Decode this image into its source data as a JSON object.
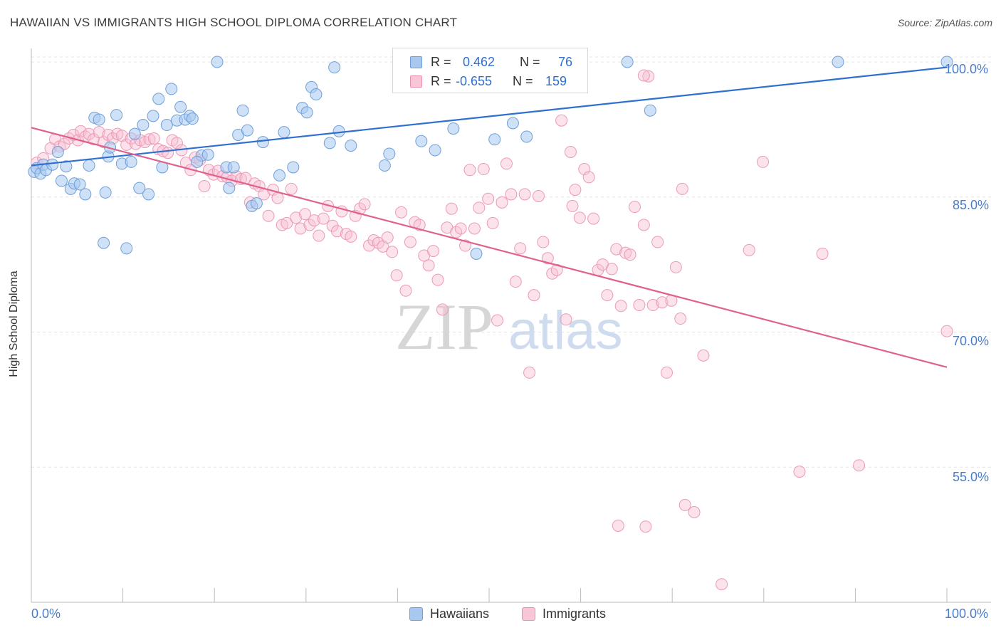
{
  "header": {
    "title": "HAWAIIAN VS IMMIGRANTS HIGH SCHOOL DIPLOMA CORRELATION CHART",
    "source": "Source: ZipAtlas.com"
  },
  "watermark": {
    "zip": "ZIP",
    "atlas": "atlas"
  },
  "legend": {
    "r_label": "R =",
    "n_label": "N =",
    "hawaiians": {
      "r": "0.462",
      "n": "76"
    },
    "immigrants": {
      "r": "-0.655",
      "n": "159"
    }
  },
  "bottom_legend": {
    "hawaiians": "Hawaiians",
    "immigrants": "Immigrants"
  },
  "chart_data": {
    "type": "scatter",
    "ylabel": "High School Diploma",
    "xlim": [
      0,
      100
    ],
    "ylim": [
      40,
      101.5
    ],
    "x_tick_labels": [
      "0.0%",
      "100.0%"
    ],
    "y_tick_labels": [
      "100.0%",
      "85.0%",
      "70.0%",
      "55.0%"
    ],
    "y_ticks": [
      100,
      85,
      70,
      55
    ],
    "grid": true,
    "legend_placement": "top-center",
    "colors": {
      "hawaiians": "#a8c8f0",
      "hawaiians_line": "#2f6fd0",
      "immigrants": "#f5b8cc",
      "immigrants_line": "#e0608e"
    },
    "series": [
      {
        "name": "Hawaiians",
        "trend": {
          "x": [
            0,
            100
          ],
          "y": [
            88.5,
            99.4
          ]
        },
        "points": [
          [
            0.3,
            87.8
          ],
          [
            0.6,
            88.2
          ],
          [
            1.0,
            87.6
          ],
          [
            1.3,
            88.6
          ],
          [
            1.6,
            88.0
          ],
          [
            2.3,
            88.6
          ],
          [
            2.9,
            90.0
          ],
          [
            3.3,
            86.8
          ],
          [
            3.8,
            88.4
          ],
          [
            4.3,
            85.9
          ],
          [
            4.7,
            86.5
          ],
          [
            5.3,
            86.4
          ],
          [
            5.9,
            85.3
          ],
          [
            6.3,
            88.5
          ],
          [
            6.9,
            93.8
          ],
          [
            7.4,
            93.6
          ],
          [
            7.9,
            79.9
          ],
          [
            8.4,
            89.5
          ],
          [
            8.6,
            90.5
          ],
          [
            9.3,
            94.1
          ],
          [
            9.9,
            88.7
          ],
          [
            10.4,
            79.3
          ],
          [
            10.9,
            88.9
          ],
          [
            11.3,
            92.0
          ],
          [
            12.2,
            93.0
          ],
          [
            12.8,
            85.3
          ],
          [
            13.3,
            94.0
          ],
          [
            13.9,
            95.9
          ],
          [
            14.3,
            88.3
          ],
          [
            14.8,
            93.0
          ],
          [
            15.3,
            97.0
          ],
          [
            15.9,
            93.5
          ],
          [
            16.3,
            95.0
          ],
          [
            16.8,
            93.6
          ],
          [
            17.3,
            94.0
          ],
          [
            17.6,
            93.7
          ],
          [
            18.6,
            89.6
          ],
          [
            19.3,
            89.7
          ],
          [
            20.3,
            100.0
          ],
          [
            21.3,
            88.3
          ],
          [
            21.6,
            86.0
          ],
          [
            22.1,
            88.3
          ],
          [
            22.6,
            91.9
          ],
          [
            23.1,
            94.6
          ],
          [
            23.6,
            92.4
          ],
          [
            24.1,
            84.0
          ],
          [
            24.6,
            84.3
          ],
          [
            25.3,
            91.1
          ],
          [
            27.1,
            87.4
          ],
          [
            27.6,
            92.2
          ],
          [
            28.6,
            88.3
          ],
          [
            29.6,
            94.9
          ],
          [
            30.1,
            94.4
          ],
          [
            30.6,
            97.2
          ],
          [
            31.1,
            96.4
          ],
          [
            32.6,
            91.0
          ],
          [
            33.1,
            99.4
          ],
          [
            33.6,
            92.3
          ],
          [
            34.9,
            90.7
          ],
          [
            38.6,
            88.5
          ],
          [
            39.1,
            89.8
          ],
          [
            42.6,
            91.2
          ],
          [
            44.1,
            90.2
          ],
          [
            46.1,
            92.6
          ],
          [
            48.1,
            100.0
          ],
          [
            48.6,
            78.7
          ],
          [
            50.6,
            91.4
          ],
          [
            52.6,
            93.2
          ],
          [
            54.1,
            91.7
          ],
          [
            65.1,
            100.0
          ],
          [
            67.6,
            94.6
          ],
          [
            88.1,
            100.0
          ],
          [
            100.0,
            100.0
          ],
          [
            8.1,
            85.5
          ],
          [
            11.8,
            86.0
          ],
          [
            18.1,
            88.9
          ]
        ]
      },
      {
        "name": "Immigrants",
        "trend": {
          "x": [
            0,
            100
          ],
          "y": [
            92.7,
            66.1
          ]
        },
        "points": [
          [
            0.6,
            88.8
          ],
          [
            1.3,
            89.3
          ],
          [
            2.1,
            90.4
          ],
          [
            2.6,
            91.4
          ],
          [
            3.1,
            90.6
          ],
          [
            3.6,
            90.9
          ],
          [
            4.1,
            91.5
          ],
          [
            4.6,
            91.9
          ],
          [
            5.1,
            91.3
          ],
          [
            5.4,
            92.3
          ],
          [
            5.9,
            91.7
          ],
          [
            6.3,
            92.0
          ],
          [
            6.8,
            91.4
          ],
          [
            7.4,
            92.2
          ],
          [
            7.9,
            91.1
          ],
          [
            8.4,
            91.9
          ],
          [
            8.9,
            91.5
          ],
          [
            9.4,
            92.0
          ],
          [
            9.9,
            91.8
          ],
          [
            10.4,
            90.8
          ],
          [
            10.9,
            91.5
          ],
          [
            11.4,
            90.9
          ],
          [
            11.9,
            91.3
          ],
          [
            12.4,
            91.1
          ],
          [
            12.9,
            91.4
          ],
          [
            13.4,
            91.5
          ],
          [
            13.9,
            90.3
          ],
          [
            14.4,
            90.1
          ],
          [
            14.9,
            89.9
          ],
          [
            15.4,
            91.3
          ],
          [
            15.9,
            91.0
          ],
          [
            16.4,
            90.2
          ],
          [
            16.9,
            88.8
          ],
          [
            17.4,
            88.0
          ],
          [
            17.9,
            89.4
          ],
          [
            18.4,
            89.1
          ],
          [
            18.9,
            86.2
          ],
          [
            19.4,
            88.0
          ],
          [
            19.9,
            87.5
          ],
          [
            20.4,
            87.9
          ],
          [
            20.9,
            87.3
          ],
          [
            21.4,
            87.2
          ],
          [
            21.9,
            86.8
          ],
          [
            22.4,
            87.3
          ],
          [
            22.9,
            87.0
          ],
          [
            23.4,
            87.1
          ],
          [
            23.9,
            84.4
          ],
          [
            24.4,
            86.5
          ],
          [
            24.9,
            86.2
          ],
          [
            25.4,
            85.3
          ],
          [
            25.9,
            82.9
          ],
          [
            26.4,
            85.8
          ],
          [
            26.9,
            84.9
          ],
          [
            27.4,
            81.9
          ],
          [
            27.9,
            82.1
          ],
          [
            28.4,
            85.9
          ],
          [
            28.9,
            82.7
          ],
          [
            29.4,
            81.5
          ],
          [
            29.9,
            83.1
          ],
          [
            30.4,
            81.9
          ],
          [
            30.9,
            82.4
          ],
          [
            31.4,
            80.7
          ],
          [
            31.9,
            82.6
          ],
          [
            32.4,
            84.0
          ],
          [
            32.9,
            81.8
          ],
          [
            33.4,
            81.2
          ],
          [
            33.9,
            83.4
          ],
          [
            34.4,
            80.9
          ],
          [
            34.9,
            80.6
          ],
          [
            35.4,
            82.9
          ],
          [
            35.9,
            83.7
          ],
          [
            36.4,
            84.2
          ],
          [
            36.9,
            79.6
          ],
          [
            37.4,
            80.2
          ],
          [
            37.9,
            79.9
          ],
          [
            38.4,
            79.5
          ],
          [
            38.9,
            80.5
          ],
          [
            39.4,
            78.9
          ],
          [
            39.9,
            76.3
          ],
          [
            40.4,
            83.3
          ],
          [
            40.9,
            74.6
          ],
          [
            41.4,
            80.0
          ],
          [
            41.9,
            82.2
          ],
          [
            42.4,
            81.9
          ],
          [
            42.9,
            78.5
          ],
          [
            43.4,
            77.4
          ],
          [
            43.9,
            79.0
          ],
          [
            44.4,
            75.8
          ],
          [
            44.9,
            72.5
          ],
          [
            45.4,
            81.6
          ],
          [
            45.9,
            83.7
          ],
          [
            46.4,
            81.1
          ],
          [
            46.9,
            81.5
          ],
          [
            47.4,
            79.6
          ],
          [
            47.9,
            88.0
          ],
          [
            48.4,
            81.5
          ],
          [
            48.9,
            83.8
          ],
          [
            49.4,
            88.1
          ],
          [
            49.9,
            84.8
          ],
          [
            50.4,
            82.1
          ],
          [
            50.9,
            71.3
          ],
          [
            51.4,
            84.4
          ],
          [
            51.9,
            88.7
          ],
          [
            52.4,
            85.3
          ],
          [
            52.9,
            75.6
          ],
          [
            53.4,
            79.3
          ],
          [
            53.9,
            85.3
          ],
          [
            54.4,
            65.5
          ],
          [
            54.9,
            74.1
          ],
          [
            55.4,
            85.1
          ],
          [
            55.9,
            80.0
          ],
          [
            56.4,
            78.2
          ],
          [
            56.9,
            76.5
          ],
          [
            57.4,
            76.9
          ],
          [
            57.9,
            93.5
          ],
          [
            58.4,
            71.4
          ],
          [
            58.9,
            90.0
          ],
          [
            59.4,
            85.8
          ],
          [
            59.9,
            82.7
          ],
          [
            60.4,
            88.1
          ],
          [
            60.9,
            87.2
          ],
          [
            61.4,
            82.6
          ],
          [
            61.9,
            76.9
          ],
          [
            62.4,
            77.5
          ],
          [
            62.9,
            74.1
          ],
          [
            63.4,
            77.0
          ],
          [
            63.9,
            79.2
          ],
          [
            64.4,
            72.9
          ],
          [
            64.9,
            78.8
          ],
          [
            65.4,
            78.6
          ],
          [
            65.9,
            83.9
          ],
          [
            66.4,
            73.0
          ],
          [
            66.9,
            81.9
          ],
          [
            67.4,
            98.4
          ],
          [
            67.9,
            73.0
          ],
          [
            68.4,
            80.0
          ],
          [
            68.9,
            73.3
          ],
          [
            69.4,
            65.5
          ],
          [
            69.9,
            73.5
          ],
          [
            70.4,
            77.2
          ],
          [
            70.9,
            71.5
          ],
          [
            71.4,
            50.8
          ],
          [
            72.4,
            50.0
          ],
          [
            73.4,
            67.4
          ],
          [
            75.4,
            42.0
          ],
          [
            78.4,
            79.1
          ],
          [
            83.9,
            54.5
          ],
          [
            86.4,
            78.7
          ],
          [
            90.4,
            55.2
          ],
          [
            100.0,
            70.1
          ],
          [
            64.1,
            48.5
          ],
          [
            67.1,
            48.4
          ],
          [
            59.1,
            84.0
          ],
          [
            66.9,
            98.5
          ],
          [
            79.9,
            88.9
          ],
          [
            71.1,
            85.9
          ]
        ]
      }
    ]
  }
}
